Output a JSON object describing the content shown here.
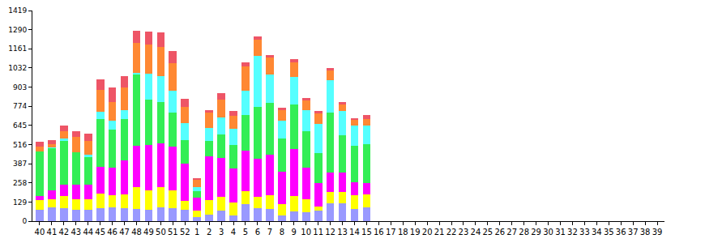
{
  "chart_data": {
    "type": "bar",
    "stacked": true,
    "grid": false,
    "categories": [
      "40",
      "41",
      "42",
      "43",
      "44",
      "45",
      "46",
      "47",
      "48",
      "49",
      "50",
      "51",
      "52",
      "1",
      "2",
      "3",
      "4",
      "5",
      "6",
      "7",
      "8",
      "9",
      "10",
      "11",
      "12",
      "13",
      "14",
      "15",
      "16",
      "17",
      "18",
      "19",
      "20",
      "21",
      "22",
      "23",
      "24",
      "25",
      "26",
      "27",
      "28",
      "29",
      "30",
      "31",
      "32",
      "33",
      "34",
      "35",
      "36",
      "37",
      "38",
      "39"
    ],
    "ylim": [
      0,
      1419
    ],
    "yticks": [
      0,
      129,
      258,
      387,
      516,
      645,
      774,
      903,
      1032,
      1161,
      1290,
      1419
    ],
    "series": [
      {
        "color": "#9999ff",
        "values": [
          75,
          95,
          90,
          75,
          75,
          90,
          95,
          85,
          80,
          75,
          95,
          90,
          75,
          30,
          45,
          70,
          40,
          115,
          85,
          80,
          40,
          65,
          60,
          70,
          120,
          120,
          80,
          95,
          null,
          null,
          null,
          null,
          null,
          null,
          null,
          null,
          null,
          null,
          null,
          null,
          null,
          null,
          null,
          null,
          null,
          null,
          null,
          null,
          null,
          null,
          null,
          null
        ]
      },
      {
        "color": "#ffff00",
        "values": [
          65,
          55,
          80,
          75,
          75,
          95,
          80,
          95,
          150,
          130,
          135,
          120,
          60,
          40,
          95,
          95,
          85,
          85,
          80,
          95,
          75,
          105,
          85,
          30,
          75,
          75,
          95,
          85,
          null,
          null,
          null,
          null,
          null,
          null,
          null,
          null,
          null,
          null,
          null,
          null,
          null,
          null,
          null,
          null,
          null,
          null,
          null,
          null,
          null,
          null,
          null,
          null
        ]
      },
      {
        "color": "#ff00ff",
        "values": [
          30,
          55,
          75,
          95,
          95,
          180,
          185,
          230,
          280,
          310,
          295,
          290,
          255,
          90,
          295,
          260,
          230,
          275,
          255,
          275,
          220,
          315,
          215,
          155,
          135,
          130,
          85,
          75,
          null,
          null,
          null,
          null,
          null,
          null,
          null,
          null,
          null,
          null,
          null,
          null,
          null,
          null,
          null,
          null,
          null,
          null,
          null,
          null,
          null,
          null,
          null,
          null
        ]
      },
      {
        "color": "#33ee55",
        "values": [
          300,
          285,
          295,
          220,
          185,
          320,
          255,
          280,
          480,
          305,
          275,
          230,
          155,
          40,
          105,
          160,
          160,
          240,
          350,
          345,
          220,
          300,
          245,
          205,
          400,
          255,
          245,
          265,
          null,
          null,
          null,
          null,
          null,
          null,
          null,
          null,
          null,
          null,
          null,
          null,
          null,
          null,
          null,
          null,
          null,
          null,
          null,
          null,
          null,
          null,
          null,
          null
        ]
      },
      {
        "color": "#55ffff",
        "values": [
          0,
          5,
          15,
          0,
          20,
          50,
          60,
          60,
          10,
          175,
          175,
          150,
          115,
          30,
          90,
          115,
          105,
          165,
          345,
          195,
          120,
          185,
          145,
          195,
          220,
          165,
          140,
          125,
          null,
          null,
          null,
          null,
          null,
          null,
          null,
          null,
          null,
          null,
          null,
          null,
          null,
          null,
          null,
          null,
          null,
          null,
          null,
          null,
          null,
          null,
          null,
          null
        ]
      },
      {
        "color": "#ff8833",
        "values": [
          30,
          25,
          50,
          100,
          90,
          150,
          130,
          150,
          200,
          195,
          200,
          185,
          110,
          50,
          100,
          120,
          90,
          160,
          110,
          110,
          75,
          100,
          65,
          70,
          65,
          40,
          35,
          40,
          null,
          null,
          null,
          null,
          null,
          null,
          null,
          null,
          null,
          null,
          null,
          null,
          null,
          null,
          null,
          null,
          null,
          null,
          null,
          null,
          null,
          null,
          null,
          null
        ]
      },
      {
        "color": "#ee5566",
        "values": [
          35,
          25,
          40,
          40,
          50,
          70,
          95,
          75,
          80,
          85,
          95,
          80,
          55,
          10,
          20,
          45,
          30,
          30,
          20,
          20,
          15,
          20,
          15,
          20,
          15,
          15,
          15,
          30,
          null,
          null,
          null,
          null,
          null,
          null,
          null,
          null,
          null,
          null,
          null,
          null,
          null,
          null,
          null,
          null,
          null,
          null,
          null,
          null,
          null,
          null,
          null,
          null
        ]
      }
    ]
  }
}
